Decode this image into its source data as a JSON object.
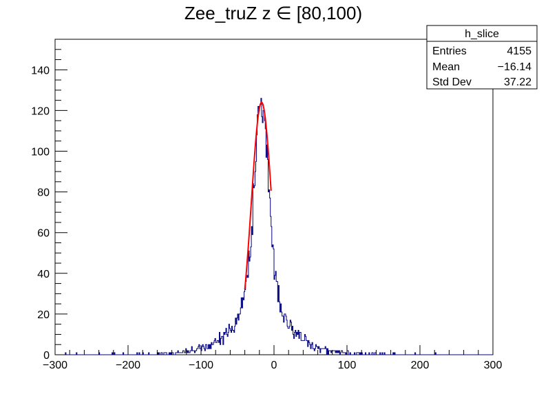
{
  "chart_data": {
    "type": "bar",
    "title": "Zee_truZ z  ∈ [80,100)",
    "xlabel": "",
    "ylabel": "",
    "xlim": [
      -300,
      300
    ],
    "ylim": [
      0,
      155
    ],
    "x_ticks": [
      -300,
      -200,
      -100,
      0,
      100,
      200,
      300
    ],
    "y_ticks": [
      0,
      20,
      40,
      60,
      80,
      100,
      120,
      140
    ],
    "grid": false,
    "series": [
      {
        "color": "#000080",
        "peak_center": -17,
        "peak_height": 127,
        "core_sigma": 10,
        "tail_scale": 28,
        "bin_width": 1
      },
      {
        "color": "#ff0000",
        "fit_range": [
          -40,
          -4
        ],
        "fit_mean": -17,
        "fit_sigma": 14,
        "fit_height": 124
      }
    ],
    "stats_box": {
      "name": "h_slice",
      "rows": [
        {
          "label": "Entries",
          "value": "4155"
        },
        {
          "label": "Mean",
          "value": "−16.14"
        },
        {
          "label": "Std Dev",
          "value": "37.22"
        }
      ]
    }
  }
}
